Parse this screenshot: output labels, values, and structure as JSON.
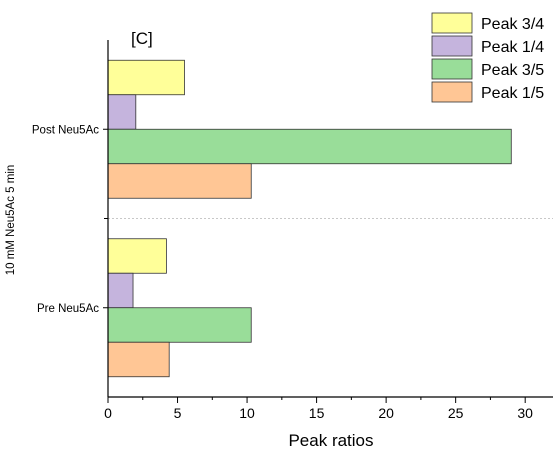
{
  "chart_data": {
    "type": "bar",
    "orientation": "horizontal",
    "panel_label": "[C]",
    "xlabel": "Peak ratios",
    "ylabel": "10 mM Neu5Ac 5 min",
    "xlim": [
      0,
      32
    ],
    "xticks": [
      0,
      5,
      10,
      15,
      20,
      25,
      30
    ],
    "categories": [
      "Post Neu5Ac",
      "Pre Neu5Ac"
    ],
    "series": [
      {
        "name": "Peak 3/4",
        "color": "#ffff99",
        "values": [
          5.5,
          4.2
        ]
      },
      {
        "name": "Peak 1/4",
        "color": "#c5b4dd",
        "values": [
          2.0,
          1.8
        ]
      },
      {
        "name": "Peak 3/5",
        "color": "#99dd99",
        "values": [
          29.0,
          10.3
        ]
      },
      {
        "name": "Peak 1/5",
        "color": "#ffc695",
        "values": [
          10.3,
          4.4
        ]
      }
    ],
    "legend_position": "top-right",
    "grid": false,
    "group_separator": "dotted"
  }
}
